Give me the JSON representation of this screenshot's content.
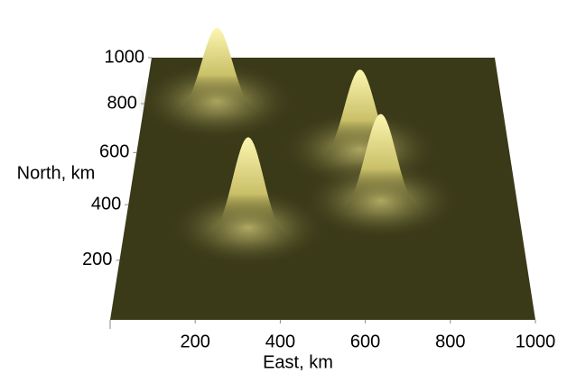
{
  "chart_data": {
    "type": "surface",
    "xlabel": "East, km",
    "ylabel": "North, km",
    "xlim": [
      0,
      1000
    ],
    "ylim": [
      0,
      1000
    ],
    "xticks": [
      200,
      400,
      600,
      800,
      1000
    ],
    "yticks": [
      200,
      400,
      600,
      800,
      1000
    ],
    "color": "#3a3918",
    "peak_color": "#fbf3a0",
    "peaks": {
      "x": [
        200,
        600,
        310,
        650
      ],
      "y": [
        850,
        650,
        350,
        450
      ]
    }
  }
}
